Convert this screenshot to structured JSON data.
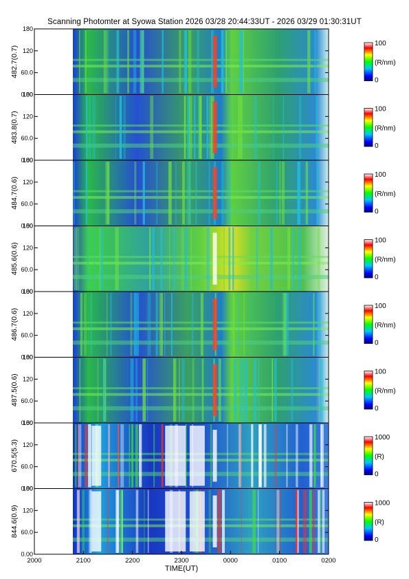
{
  "title": "Scanning Photomter at Syowa Station 2026 03/28 20:44:33UT - 2026 03/29 01:30:31UT",
  "colors": {
    "colorbar_stops": [
      "#000080",
      "#0000ff",
      "#00c8ff",
      "#00ff00",
      "#ffff00",
      "#ff0000",
      "#ffffff"
    ],
    "background": "#ffffff"
  },
  "chart_data": {
    "type": "heatmap",
    "title": "Scanning Photomter at Syowa Station 2026 03/28 20:44:33UT - 2026 03/29 01:30:31UT",
    "xlabel": "TIME(UT)",
    "x_ticks": [
      "2000",
      "2100",
      "2200",
      "2300",
      "0000",
      "0100",
      "0200"
    ],
    "xlim": [
      "2000",
      "0200"
    ],
    "data_start": "20:44:33",
    "data_end": "01:30:31",
    "y_ticks": [
      "0.00",
      "60.0",
      "120",
      "180"
    ],
    "ylim": [
      0,
      180
    ],
    "panels": [
      {
        "name": "482.7(0.7)",
        "unit": "(R/nm)",
        "cmax": "100",
        "cmin": "0",
        "intensity": "moderate"
      },
      {
        "name": "483.8(0.7)",
        "unit": "(R/nm)",
        "cmax": "100",
        "cmin": "0",
        "intensity": "moderate"
      },
      {
        "name": "484.7(0.6)",
        "unit": "(R/nm)",
        "cmax": "100",
        "cmin": "0",
        "intensity": "moderate"
      },
      {
        "name": "485.6(0.6)",
        "unit": "(R/nm)",
        "cmax": "100",
        "cmin": "0",
        "intensity": "strong"
      },
      {
        "name": "486.7(0.6)",
        "unit": "(R/nm)",
        "cmax": "100",
        "cmin": "0",
        "intensity": "moderate"
      },
      {
        "name": "487.5(0.6)",
        "unit": "(R/nm)",
        "cmax": "100",
        "cmin": "0",
        "intensity": "moderate"
      },
      {
        "name": "670.5(5.3)",
        "unit": "(R)",
        "cmax": "1000",
        "cmin": "0",
        "intensity": "saturated"
      },
      {
        "name": "844.6(0.9)",
        "unit": "(R)",
        "cmax": "1000",
        "cmin": "0",
        "intensity": "saturated"
      }
    ]
  }
}
